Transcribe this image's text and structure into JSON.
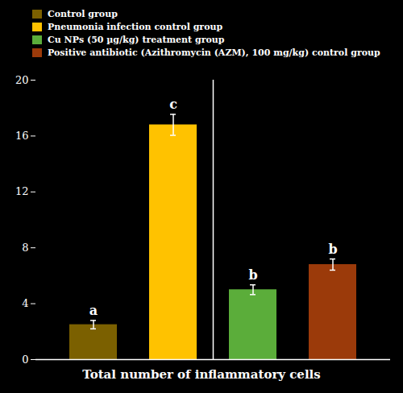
{
  "chart_data": {
    "type": "bar",
    "categories": [
      "Control group",
      "Pneumonia infection control group",
      "Cu NPs (50 µg/kg) treatment group",
      "Positive antibiotic (Azithromycin (AZM), 100 mg/kg) control group"
    ],
    "values": [
      2.5,
      16.8,
      5.0,
      6.8
    ],
    "errors": [
      0.3,
      0.75,
      0.35,
      0.4
    ],
    "colors": [
      "#7B6000",
      "#FFC200",
      "#5BAD3A",
      "#9B3A0A"
    ],
    "annotations": [
      "a",
      "c",
      "b",
      "b"
    ],
    "xlabel": "Total number of inflammatory cells",
    "ylim": [
      0,
      20
    ],
    "yticks": [
      0,
      4,
      8,
      12,
      16,
      20
    ],
    "legend": "top",
    "tick_labels": "y"
  }
}
